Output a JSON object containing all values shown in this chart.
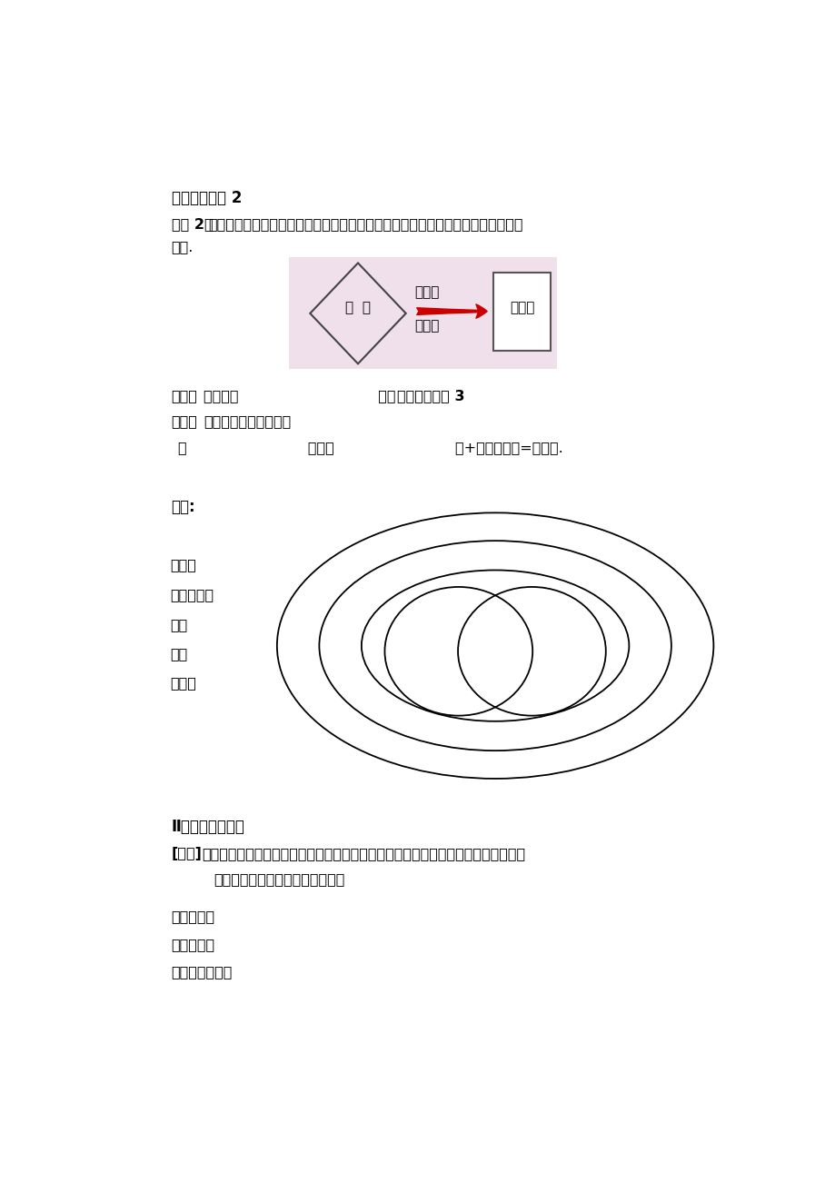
{
  "bg_color": "#ffffff",
  "diagram_bg": "#f0e0ec",
  "arrow_color": "#cc0000",
  "title1": "正方形的判定 2",
  "op2_bold": "操作 2　",
  "op2_rest": "你能否利用手中的可以活动的菱形模型变成一个正方形吗？如何变？请演示并画出",
  "op2_line2": "图形.",
  "diamond_label": "菱  形",
  "arrow_top": "一个角",
  "arrow_bot": "是直角",
  "rect_label": "正方形",
  "summary_bold1": "总结：",
  "summary_normal": "菱形＋（                              ）］",
  "summary_bold2": "正方形的判定 3",
  "think_bold": "思考：",
  "think_rest": "如果是平行四边形呢？",
  "think2": "（                          ）＋（                          ）+平行四边形=正方形.",
  "fillmap": "填图:",
  "labels": [
    "四边形",
    "平行四边形",
    "矩形",
    "菱形",
    "正方形"
  ],
  "sec2_title": "Ⅱ、正方形的性质",
  "jiaoliu_bold": "[交流]",
  "jiaoliu_rest": "根据上述关系可知，正方形既是特殊的矩形、又是特殊的菱形，更是的特殊的平行四",
  "jiaoliu_line2": "边形，你能说出正方形的性质吗？",
  "from_edge": "从边来说：",
  "from_angle": "从角来说：",
  "from_diag": "从对角线来说："
}
